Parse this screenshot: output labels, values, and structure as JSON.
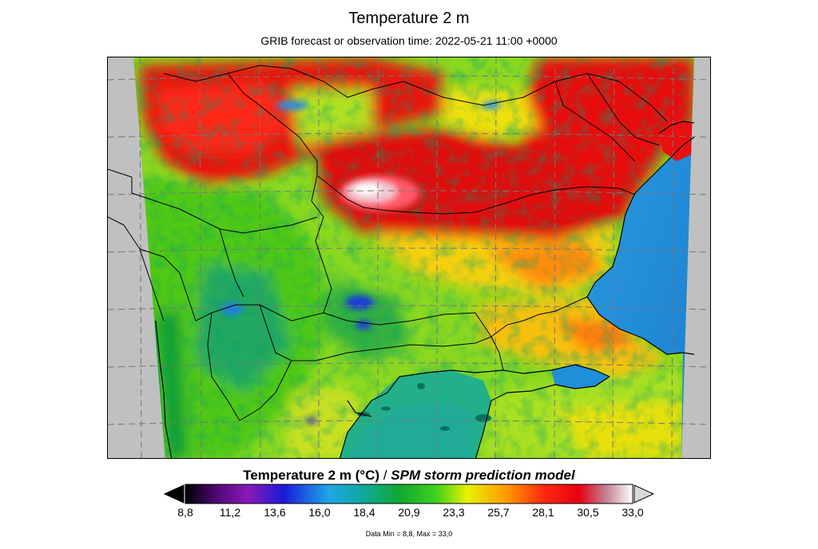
{
  "header": {
    "title": "Temperature 2 m",
    "subtitle": "GRIB forecast or observation time: 2022-05-21 11:00 +0000"
  },
  "legend": {
    "title_parameter": "Temperature 2 m (°C)",
    "title_separator": " / ",
    "title_model": "SPM storm prediction model",
    "ticks": [
      "8,8",
      "11,2",
      "13,6",
      "16,0",
      "18,4",
      "20,9",
      "23,3",
      "25,7",
      "28,1",
      "30,5",
      "33,0"
    ],
    "data_range": "Data Min = 8,8, Max = 33,0"
  },
  "colors": {
    "no_data": "#c0c0c0",
    "sea": "#1e8fd8",
    "aegean": "#1fae8c",
    "scale": [
      "#000000",
      "#7a1aa6",
      "#1a1ad8",
      "#1ea6e8",
      "#10b060",
      "#40d020",
      "#e8f000",
      "#ff9800",
      "#ff2a10",
      "#e80010",
      "#ffffff"
    ]
  },
  "map": {
    "region": "Balkans / Black Sea",
    "grid": true,
    "layers": [
      "temperature-field",
      "country-borders",
      "coastlines",
      "lat-lon-grid"
    ]
  }
}
